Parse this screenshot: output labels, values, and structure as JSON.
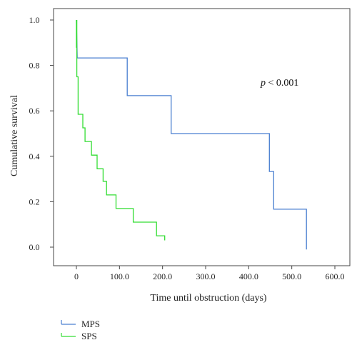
{
  "chart_data": {
    "type": "line",
    "step": true,
    "xlabel": "Time until obstruction (days)",
    "ylabel": "Cumulative survival",
    "xlim": [
      0,
      600
    ],
    "ylim": [
      0,
      1.0
    ],
    "x_ticks": [
      "0",
      "100.0",
      "200.0",
      "300.0",
      "400.0",
      "500.0",
      "600.0"
    ],
    "y_ticks": [
      "0.0",
      "0.2",
      "0.4",
      "0.6",
      "0.8",
      "1.0"
    ],
    "x_tick_values": [
      0,
      100,
      200,
      300,
      400,
      500,
      600
    ],
    "y_tick_values": [
      0,
      0.2,
      0.4,
      0.6,
      0.8,
      1.0
    ],
    "annotation": {
      "italic": "p",
      "rest": " < 0.001"
    },
    "legend": {
      "position": "bottom-left"
    },
    "grid": false,
    "series": [
      {
        "name": "MPS",
        "color": "#4a7fd0",
        "points": [
          [
            0,
            1.0
          ],
          [
            2,
            0.833
          ],
          [
            118,
            0.833
          ],
          [
            118,
            0.667
          ],
          [
            220,
            0.667
          ],
          [
            220,
            0.5
          ],
          [
            448,
            0.5
          ],
          [
            448,
            0.333
          ],
          [
            458,
            0.333
          ],
          [
            458,
            0.167
          ],
          [
            534,
            0.167
          ],
          [
            534,
            -0.01
          ]
        ]
      },
      {
        "name": "SPS",
        "color": "#33dd33",
        "points": [
          [
            0,
            1.0
          ],
          [
            0,
            0.88
          ],
          [
            1,
            0.88
          ],
          [
            1,
            1.0
          ],
          [
            1,
            0.75
          ],
          [
            4,
            0.75
          ],
          [
            4,
            0.585
          ],
          [
            15,
            0.585
          ],
          [
            15,
            0.525
          ],
          [
            20,
            0.525
          ],
          [
            20,
            0.465
          ],
          [
            35,
            0.465
          ],
          [
            35,
            0.405
          ],
          [
            48,
            0.405
          ],
          [
            48,
            0.345
          ],
          [
            62,
            0.345
          ],
          [
            62,
            0.29
          ],
          [
            70,
            0.29
          ],
          [
            70,
            0.23
          ],
          [
            92,
            0.23
          ],
          [
            92,
            0.17
          ],
          [
            132,
            0.17
          ],
          [
            132,
            0.11
          ],
          [
            186,
            0.11
          ],
          [
            186,
            0.05
          ],
          [
            205,
            0.05
          ],
          [
            205,
            0.03
          ]
        ]
      }
    ]
  }
}
